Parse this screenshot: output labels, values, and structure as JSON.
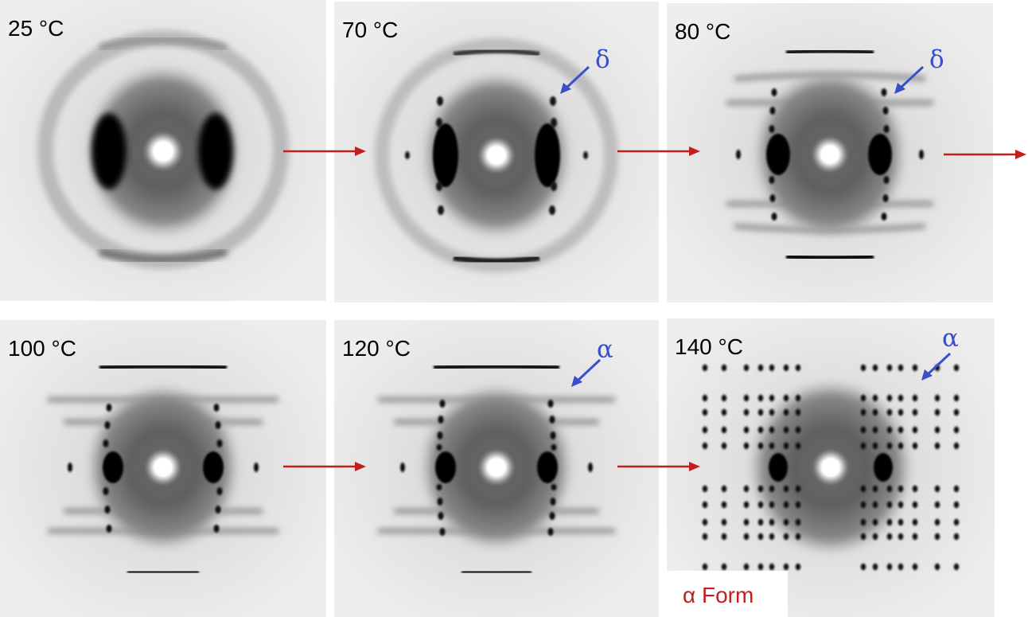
{
  "figure": {
    "colors": {
      "arrow": "#c21f1f",
      "marker": "#3a4fc8",
      "form_label": "#c0201f",
      "background": "#e6e6e6"
    },
    "panels": [
      {
        "id": "p1",
        "temperature": "25 °C",
        "marker": ""
      },
      {
        "id": "p2",
        "temperature": "70 °C",
        "marker": "δ"
      },
      {
        "id": "p3",
        "temperature": "80 °C",
        "marker": "δ"
      },
      {
        "id": "p4",
        "temperature": "100 °C",
        "marker": ""
      },
      {
        "id": "p5",
        "temperature": "120 °C",
        "marker": "α"
      },
      {
        "id": "p6",
        "temperature": "140 °C",
        "marker": "α"
      }
    ],
    "form_label": "α Form"
  }
}
